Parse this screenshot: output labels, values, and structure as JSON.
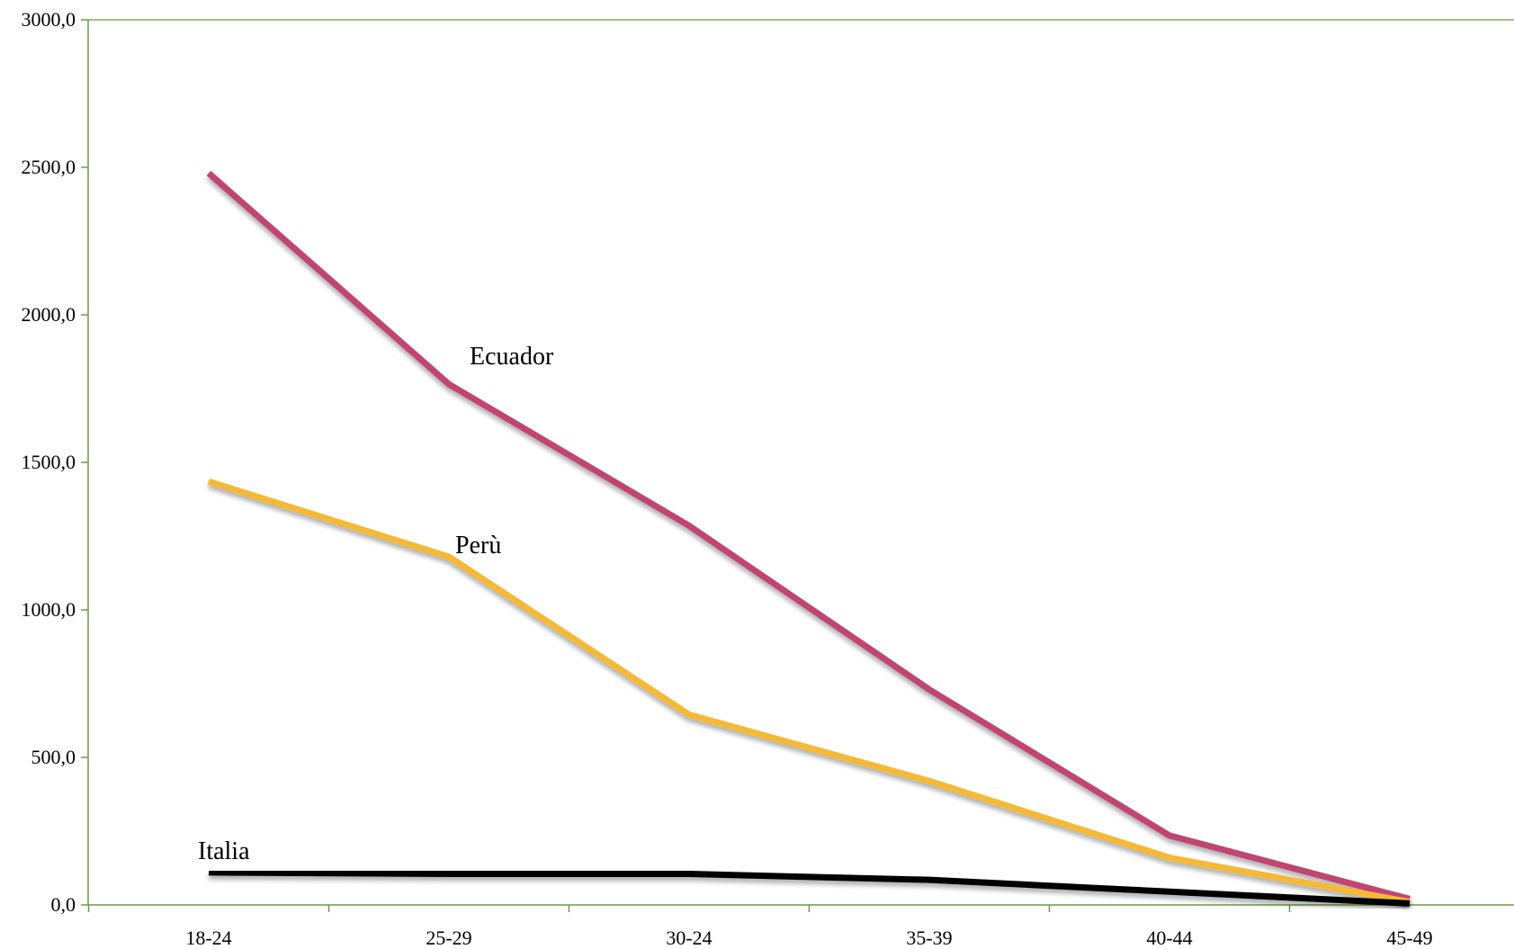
{
  "chart_data": {
    "type": "line",
    "categories": [
      "18-24",
      "25-29",
      "30-24",
      "35-39",
      "40-44",
      "45-49"
    ],
    "ylim": [
      0,
      3000
    ],
    "yticks": [
      "0,0",
      "500,0",
      "1000,0",
      "1500,0",
      "2000,0",
      "2500,0",
      "3000,0"
    ],
    "grid": false,
    "legend": "none",
    "series": [
      {
        "name": "Ecuador",
        "color": "#c0456f",
        "values": [
          2480,
          1765,
          1285,
          730,
          235,
          20
        ]
      },
      {
        "name": "Perù",
        "color": "#f5b935",
        "values": [
          1435,
          1180,
          645,
          420,
          160,
          10
        ]
      },
      {
        "name": "Italia",
        "color": "#000000",
        "values": [
          110,
          105,
          105,
          85,
          45,
          5
        ]
      }
    ],
    "axis_color": "#6a9a4a"
  }
}
